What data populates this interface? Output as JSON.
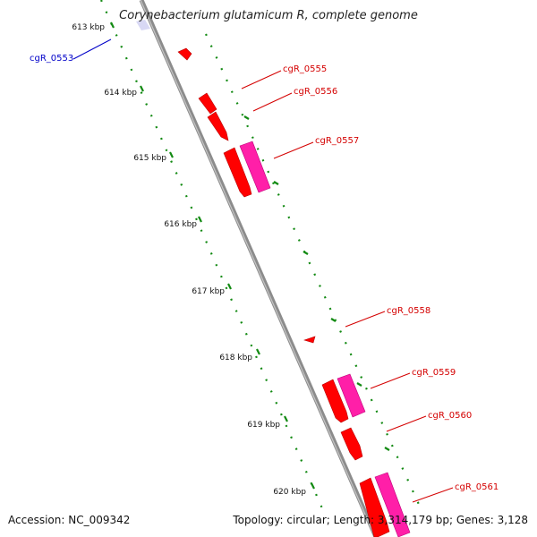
{
  "title": "Corynebacterium glutamicum R, complete genome",
  "accession": "Accession: NC_009342",
  "summary": "Topology: circular; Length: 3,314,179 bp; Genes: 3,128",
  "colors": {
    "backbone": "#8c8c8c",
    "cds": "#ff0000",
    "cds_dark": "#c80000",
    "rna_pink": "#ff1fa8",
    "label_red": "#d40000",
    "label_blue": "#0000c8",
    "tick_green": "#138a13"
  },
  "kbp_ticks": [
    "613 kbp",
    "614 kbp",
    "615 kbp",
    "616 kbp",
    "617 kbp",
    "618 kbp",
    "619 kbp",
    "620 kbp"
  ],
  "genes": [
    {
      "name": "cgR_0553",
      "color": "blue"
    },
    {
      "name": "cgR_0555",
      "color": "red"
    },
    {
      "name": "cgR_0556",
      "color": "red"
    },
    {
      "name": "cgR_0557",
      "color": "red"
    },
    {
      "name": "cgR_0558",
      "color": "red"
    },
    {
      "name": "cgR_0559",
      "color": "red"
    },
    {
      "name": "cgR_0560",
      "color": "red"
    },
    {
      "name": "cgR_0561",
      "color": "red"
    }
  ]
}
